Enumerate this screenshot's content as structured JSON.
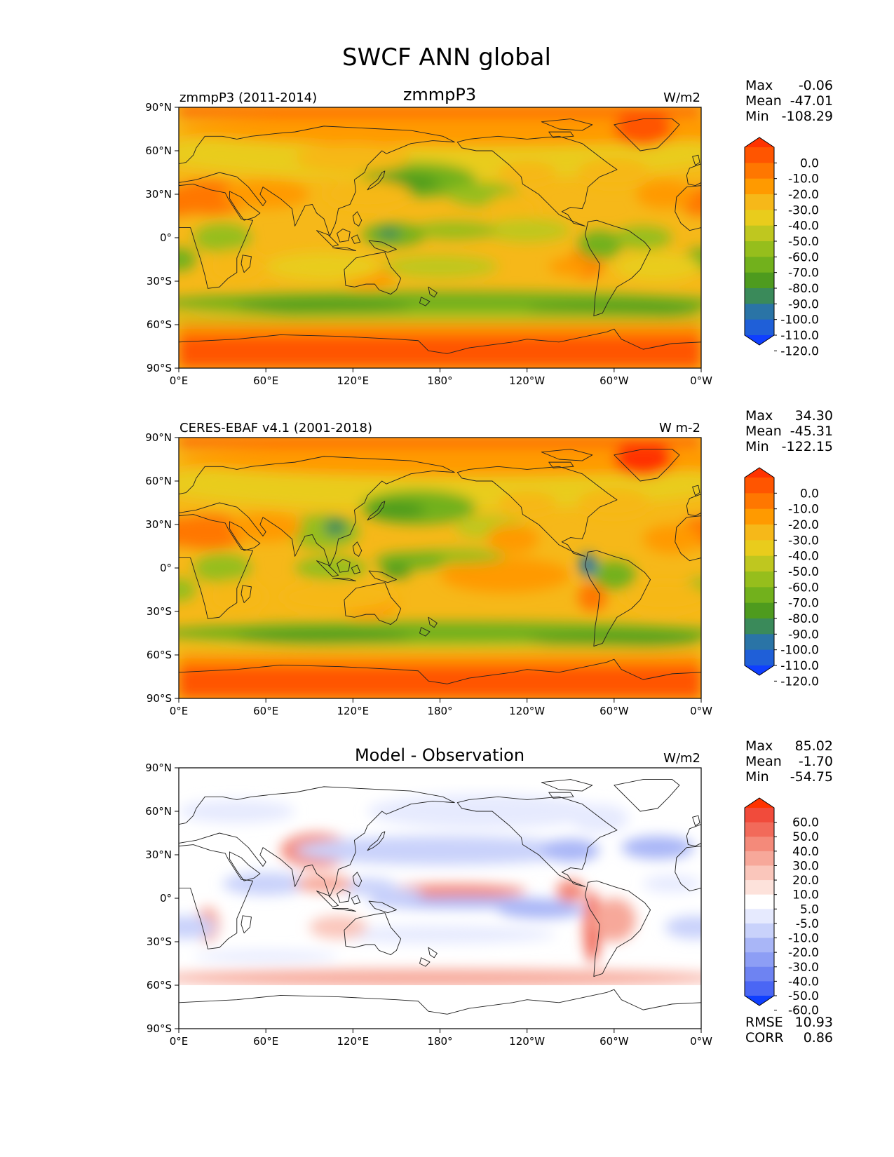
{
  "suptitle": "SWCF ANN global",
  "x_ticks": [
    "0°E",
    "60°E",
    "120°E",
    "180°",
    "120°W",
    "60°W",
    "0°W"
  ],
  "y_ticks": [
    "90°N",
    "60°N",
    "30°N",
    "0°",
    "30°S",
    "60°S",
    "90°S"
  ],
  "colormaps": {
    "field": {
      "labels": [
        "0.0",
        "-10.0",
        "-20.0",
        "-30.0",
        "-40.0",
        "-50.0",
        "-60.0",
        "-70.0",
        "-80.0",
        "-90.0",
        "-100.0",
        "-110.0",
        "-120.0"
      ],
      "colors": [
        "#ff3300",
        "#ff5500",
        "#ff7700",
        "#ff9a00",
        "#f6b819",
        "#e9cc1c",
        "#bfc71f",
        "#96be1c",
        "#72b11c",
        "#4e9b1e",
        "#3a8a5a",
        "#2a74a6",
        "#1f5fd8",
        "#0f3fff"
      ]
    },
    "diff": {
      "labels": [
        "60.0",
        "50.0",
        "40.0",
        "30.0",
        "20.0",
        "10.0",
        "5.0",
        "-5.0",
        "-10.0",
        "-20.0",
        "-30.0",
        "-40.0",
        "-50.0",
        "-60.0"
      ],
      "colors": [
        "#ff3300",
        "#f14b3b",
        "#f26a5a",
        "#f48a7a",
        "#f7a89a",
        "#fac6bb",
        "#fde2db",
        "#ffffff",
        "#e6eafe",
        "#c9d2fb",
        "#a9b6f7",
        "#8d9ef5",
        "#6e83f2",
        "#4a66f4",
        "#0f3fff"
      ]
    }
  },
  "panels": [
    {
      "id": "test",
      "left_title": "zmmpP3 (2011-2014)",
      "center_title": "zmmpP3",
      "right_title": "W/m2",
      "stats": [
        {
          "label": "Max",
          "value": "-0.06"
        },
        {
          "label": "Mean",
          "value": "-47.01"
        },
        {
          "label": "Min",
          "value": "-108.29"
        }
      ],
      "colormap": "field",
      "extra_stats": []
    },
    {
      "id": "reference",
      "left_title": "CERES-EBAF v4.1 (2001-2018)",
      "center_title": "",
      "right_title": "W m-2",
      "stats": [
        {
          "label": "Max",
          "value": "34.30"
        },
        {
          "label": "Mean",
          "value": "-45.31"
        },
        {
          "label": "Min",
          "value": "-122.15"
        }
      ],
      "colormap": "field",
      "extra_stats": []
    },
    {
      "id": "diff",
      "left_title": "",
      "center_title": "Model - Observation",
      "right_title": "W/m2",
      "stats": [
        {
          "label": "Max",
          "value": "85.02"
        },
        {
          "label": "Mean",
          "value": "-1.70"
        },
        {
          "label": "Min",
          "value": "-54.75"
        }
      ],
      "colormap": "diff",
      "extra_stats": [
        {
          "label": "RMSE",
          "value": "10.93"
        },
        {
          "label": "CORR",
          "value": "0.86"
        }
      ]
    }
  ]
}
